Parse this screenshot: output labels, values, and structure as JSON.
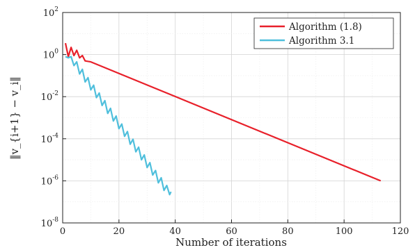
{
  "chart_data": {
    "type": "line",
    "xlabel": "Number of iterations",
    "ylabel": "‖v_{i+1} − v_i‖",
    "xlim": [
      0,
      120
    ],
    "ylim": [
      1e-08,
      100
    ],
    "yscale": "log",
    "grid": true,
    "legend_position": "top-right",
    "x_ticks": [
      "0",
      "20",
      "40",
      "60",
      "80",
      "100",
      "120"
    ],
    "y_ticks": [
      {
        "base": "10",
        "exp": "-8",
        "value": 1e-08
      },
      {
        "base": "10",
        "exp": "-6",
        "value": 1e-06
      },
      {
        "base": "10",
        "exp": "-4",
        "value": 0.0001
      },
      {
        "base": "10",
        "exp": "-2",
        "value": 0.01
      },
      {
        "base": "10",
        "exp": "0",
        "value": 1
      },
      {
        "base": "10",
        "exp": "2",
        "value": 100
      }
    ],
    "series": [
      {
        "name": "Algorithm (1.8)",
        "color": "#e8202a",
        "points": [
          [
            1,
            3.5
          ],
          [
            2,
            0.8
          ],
          [
            3,
            2.2
          ],
          [
            4,
            0.9
          ],
          [
            5,
            1.6
          ],
          [
            6,
            0.7
          ],
          [
            7,
            0.9
          ],
          [
            8,
            0.5
          ],
          [
            10,
            0.45
          ],
          [
            113,
            1e-06
          ]
        ]
      },
      {
        "name": "Algorithm 3.1",
        "color": "#4fbfdc",
        "points": [
          [
            1,
            0.8
          ],
          [
            2,
            0.7
          ],
          [
            3,
            0.8
          ],
          [
            4,
            0.3
          ],
          [
            5,
            0.45
          ],
          [
            6,
            0.12
          ],
          [
            7,
            0.2
          ],
          [
            8,
            0.05
          ],
          [
            9,
            0.08
          ],
          [
            10,
            0.021
          ],
          [
            11,
            0.035
          ],
          [
            12,
            0.009
          ],
          [
            13,
            0.015
          ],
          [
            14,
            0.0038
          ],
          [
            15,
            0.0065
          ],
          [
            16,
            0.0016
          ],
          [
            17,
            0.0028
          ],
          [
            18,
            0.0007
          ],
          [
            19,
            0.0012
          ],
          [
            20,
            0.0003
          ],
          [
            21,
            0.0005
          ],
          [
            22,
            0.00013
          ],
          [
            23,
            0.00022
          ],
          [
            24,
            5.5e-05
          ],
          [
            25,
            9.5e-05
          ],
          [
            26,
            2.4e-05
          ],
          [
            27,
            4e-05
          ],
          [
            28,
            1e-05
          ],
          [
            29,
            1.7e-05
          ],
          [
            30,
            4.3e-06
          ],
          [
            31,
            7.3e-06
          ],
          [
            32,
            1.9e-06
          ],
          [
            33,
            3.1e-06
          ],
          [
            34,
            8e-07
          ],
          [
            35,
            1.4e-06
          ],
          [
            36,
            3.5e-07
          ],
          [
            37,
            6e-07
          ],
          [
            38,
            2.2e-07
          ],
          [
            38.5,
            3e-07
          ]
        ]
      }
    ]
  }
}
